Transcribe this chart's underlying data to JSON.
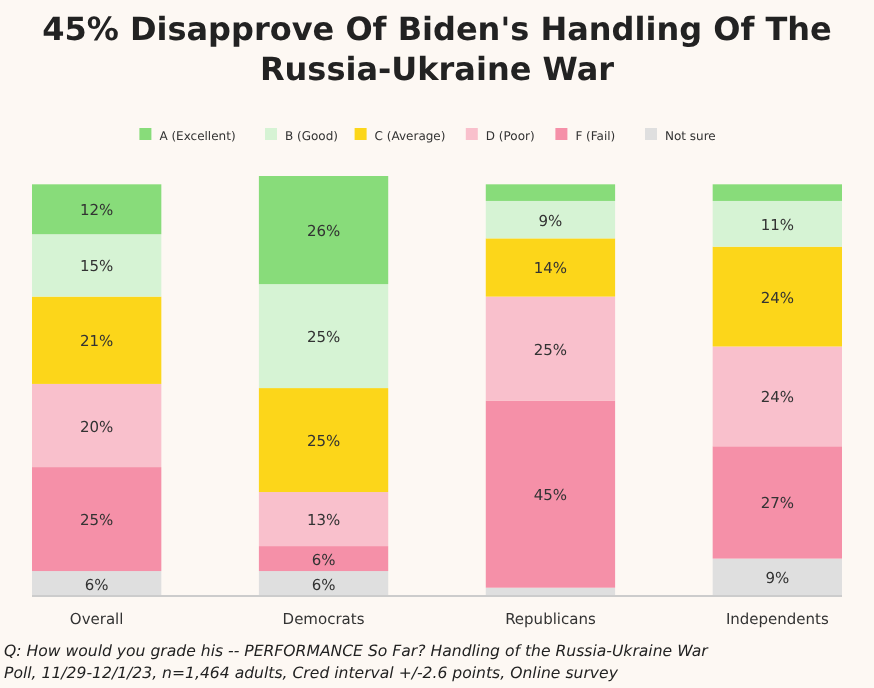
{
  "chart_data": {
    "type": "bar",
    "stacked": true,
    "title": "45% Disapprove Of Biden's Handling Of The Russia-Ukraine War",
    "categories": [
      "Overall",
      "Democrats",
      "Republicans",
      "Independents"
    ],
    "series": [
      {
        "name": "Not sure",
        "color": "#dfdfdf",
        "values": [
          6,
          6,
          2,
          9
        ],
        "value_labels": [
          "6%",
          "6%",
          null,
          "9%"
        ]
      },
      {
        "name": "F (Fail)",
        "color": "#f590a8",
        "values": [
          25,
          6,
          45,
          27
        ],
        "value_labels": [
          "25%",
          "6%",
          "45%",
          "27%"
        ]
      },
      {
        "name": "D (Poor)",
        "color": "#f9c0cc",
        "values": [
          20,
          13,
          25,
          24
        ],
        "value_labels": [
          "20%",
          "13%",
          "25%",
          "24%"
        ]
      },
      {
        "name": "C (Average)",
        "color": "#fcd61a",
        "values": [
          21,
          25,
          14,
          24
        ],
        "value_labels": [
          "21%",
          "25%",
          "14%",
          "24%"
        ]
      },
      {
        "name": "B (Good)",
        "color": "#d6f3d4",
        "values": [
          15,
          25,
          9,
          11
        ],
        "value_labels": [
          "15%",
          "25%",
          "9%",
          "11%"
        ]
      },
      {
        "name": "A (Excellent)",
        "color": "#88dc7a",
        "values": [
          12,
          26,
          4,
          4
        ],
        "value_labels": [
          "12%",
          "26%",
          null,
          null
        ]
      }
    ],
    "ylim": [
      0,
      101
    ],
    "tick_labels": "x",
    "legend": "top",
    "annotations": [
      "Q:  How would you grade his -- PERFORMANCE So Far?  Handling of the Russia-Ukraine War",
      "Poll, 11/29-12/1/23, n=1,464 adults, Cred interval +/-2.6 points, Online survey"
    ]
  }
}
